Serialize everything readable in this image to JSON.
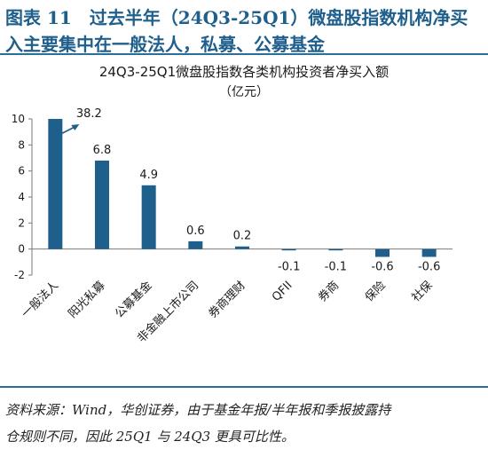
{
  "figure": {
    "title_line1": "图表 11　过去半年（24Q3-25Q1）微盘股指数机构净买",
    "title_line2": "入主要集中在一般法人，私募、公募基金"
  },
  "footer": {
    "line1": "资料来源：Wind，华创证券，由于基金年报/半年报和季报披露持",
    "line2": "仓规则不同，因此 25Q1 与 24Q3 更具可比性。"
  },
  "colors": {
    "bar": "#1f5f8b",
    "axis": "#7a7a7a",
    "text": "#1a1a1a",
    "title_blue": "#1f5f8b"
  },
  "chart_data": {
    "type": "bar",
    "title": "24Q3-25Q1微盘股指数各类机构投资者净买入额",
    "subtitle": "（亿元）",
    "categories": [
      "一般法人",
      "阳光私募",
      "公募基金",
      "非金融上市公司",
      "券商理财",
      "QFII",
      "券商",
      "保险",
      "社保"
    ],
    "values": [
      38.2,
      6.8,
      4.9,
      0.6,
      0.2,
      -0.1,
      -0.1,
      -0.6,
      -0.6
    ],
    "value_labels": [
      "38.2",
      "6.8",
      "4.9",
      "0.6",
      "0.2",
      "-0.1",
      "-0.1",
      "-0.6",
      "-0.6"
    ],
    "ylim": [
      -2,
      10
    ],
    "yticks": [
      "-2",
      "0",
      "2",
      "4",
      "6",
      "8",
      "10"
    ],
    "axis_break_note": "first bar truncated at axis top; arrow points to 38.2",
    "grid": false,
    "legend": "none"
  }
}
